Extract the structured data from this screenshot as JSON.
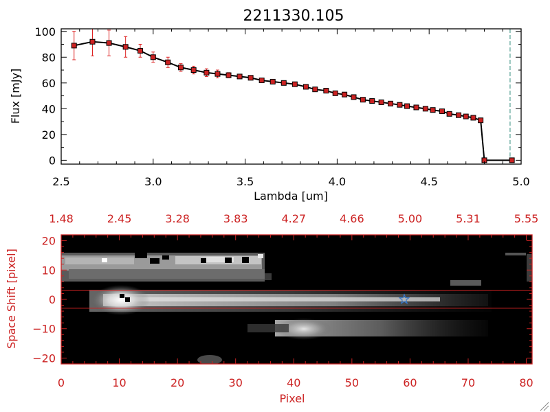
{
  "chart_data": [
    {
      "type": "line",
      "title": "2211330.105",
      "xlabel": "Lambda [um]",
      "ylabel": "Flux [mJy]",
      "xlim": [
        2.5,
        5.0
      ],
      "ylim": [
        -3,
        102
      ],
      "x_ticks": [
        2.5,
        3.0,
        3.5,
        4.0,
        4.5,
        5.0
      ],
      "x_tick_labels": [
        "2.5",
        "3.0",
        "3.5",
        "4.0",
        "4.5",
        "5.0"
      ],
      "y_ticks": [
        0,
        20,
        40,
        60,
        80,
        100
      ],
      "y_tick_labels": [
        "0",
        "20",
        "40",
        "60",
        "80",
        "100"
      ],
      "grid": false,
      "marker": "square",
      "line_color": "#000000",
      "marker_color": "#cc2222",
      "errorbar_color": "#dd2222",
      "x": [
        2.57,
        2.67,
        2.76,
        2.85,
        2.93,
        3.0,
        3.08,
        3.15,
        3.22,
        3.29,
        3.35,
        3.41,
        3.47,
        3.53,
        3.59,
        3.65,
        3.71,
        3.77,
        3.83,
        3.88,
        3.94,
        3.99,
        4.04,
        4.09,
        4.14,
        4.19,
        4.24,
        4.29,
        4.34,
        4.38,
        4.43,
        4.48,
        4.52,
        4.57,
        4.61,
        4.66,
        4.7,
        4.74,
        4.78,
        4.8,
        4.95
      ],
      "y": [
        89,
        92,
        91,
        88,
        85,
        80,
        76,
        72,
        70,
        68,
        67,
        66,
        65,
        64,
        62,
        61,
        60,
        59,
        57,
        55,
        54,
        52,
        51,
        49,
        47,
        46,
        45,
        44,
        43,
        42,
        41,
        40,
        39,
        38,
        36,
        35,
        34,
        33,
        31,
        0,
        0
      ],
      "yerr": [
        11,
        11,
        10,
        8,
        5,
        4,
        4,
        3,
        3,
        3,
        3,
        2,
        1,
        1,
        1,
        1,
        1,
        1,
        1,
        1,
        1,
        1,
        1,
        1,
        1,
        1,
        1,
        1,
        1,
        1,
        1,
        1,
        1,
        1,
        1,
        1,
        1,
        1,
        1,
        0,
        0
      ],
      "vline": {
        "x": 4.94,
        "color": "#2e8b7a",
        "style": "dashed"
      }
    },
    {
      "type": "heatmap",
      "xlabel": "Pixel",
      "ylabel": "Space Shift [pixel]",
      "xlim": [
        0,
        81
      ],
      "ylim": [
        -22,
        22
      ],
      "x_ticks": [
        0,
        10,
        20,
        30,
        40,
        50,
        60,
        70,
        80
      ],
      "x_tick_labels": [
        "0",
        "10",
        "20",
        "30",
        "40",
        "50",
        "60",
        "70",
        "80"
      ],
      "y_ticks": [
        -20,
        -10,
        0,
        10,
        20
      ],
      "y_tick_labels": [
        "−20",
        "−10",
        "0",
        "10",
        "20"
      ],
      "top_axis_ticks": [
        0,
        10,
        20,
        30,
        40,
        50,
        60,
        70,
        80
      ],
      "top_axis_labels": [
        "1.48",
        "2.45",
        "3.28",
        "3.83",
        "4.27",
        "4.66",
        "5.00",
        "5.31",
        "5.55"
      ],
      "axis_color": "#cc2222",
      "colormap": "grayscale",
      "extraction_lines_y": [
        3,
        -3
      ],
      "extraction_line_color": "#cc2222",
      "star_marker": {
        "x": 59,
        "y": 0,
        "color": "#3377cc"
      },
      "components": [
        {
          "name": "primary trace",
          "x_range": [
            7,
            72
          ],
          "y": 0,
          "peak_x": 11
        },
        {
          "name": "secondary trace",
          "x_range": [
            35,
            72
          ],
          "y": -9,
          "peak_x": 42
        },
        {
          "name": "saturated band",
          "x_range": [
            0,
            35
          ],
          "y": 13
        }
      ]
    }
  ]
}
